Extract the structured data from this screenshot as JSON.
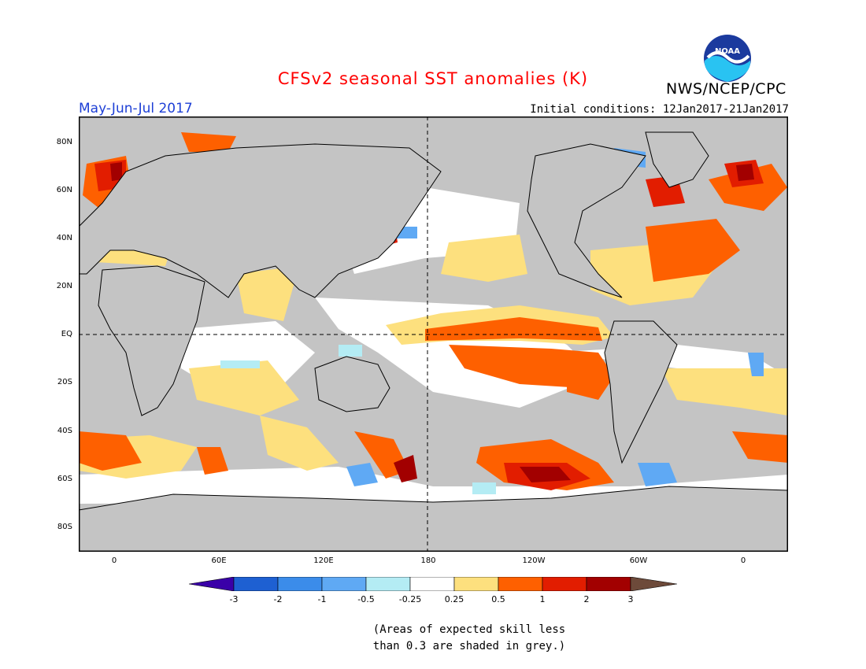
{
  "header": {
    "title": "CFSv2 seasonal SST anomalies (K)",
    "season": "May-Jun-Jul 2017",
    "initial_conditions": "Initial conditions: 12Jan2017-21Jan2017",
    "agency": "NWS/NCEP/CPC",
    "logo_text": "NOAA"
  },
  "map": {
    "lat_labels": [
      "80N",
      "60N",
      "40N",
      "20N",
      "EQ",
      "20S",
      "40S",
      "60S",
      "80S"
    ],
    "lon_labels": [
      "0",
      "60E",
      "120E",
      "180",
      "120W",
      "60W",
      "0"
    ],
    "colors": {
      "land": "#c4c4c4",
      "ocean_neutral": "#ffffff",
      "skill_grey": "#c4c4c4",
      "coast": "#000000"
    }
  },
  "colorbar": {
    "labels": [
      "-3",
      "-2",
      "-1",
      "-0.5",
      "-0.25",
      "0.25",
      "0.5",
      "1",
      "2",
      "3"
    ],
    "colors": [
      "#3a00a8",
      "#1e60d2",
      "#3b8cea",
      "#5fa9f4",
      "#b4ecf4",
      "#ffffff",
      "#fde07e",
      "#fe6000",
      "#e21d00",
      "#a20000",
      "#6d4a3a"
    ]
  },
  "note": {
    "line1": "(Areas of expected skill less",
    "line2": "than 0.3 are shaded in grey.)"
  }
}
